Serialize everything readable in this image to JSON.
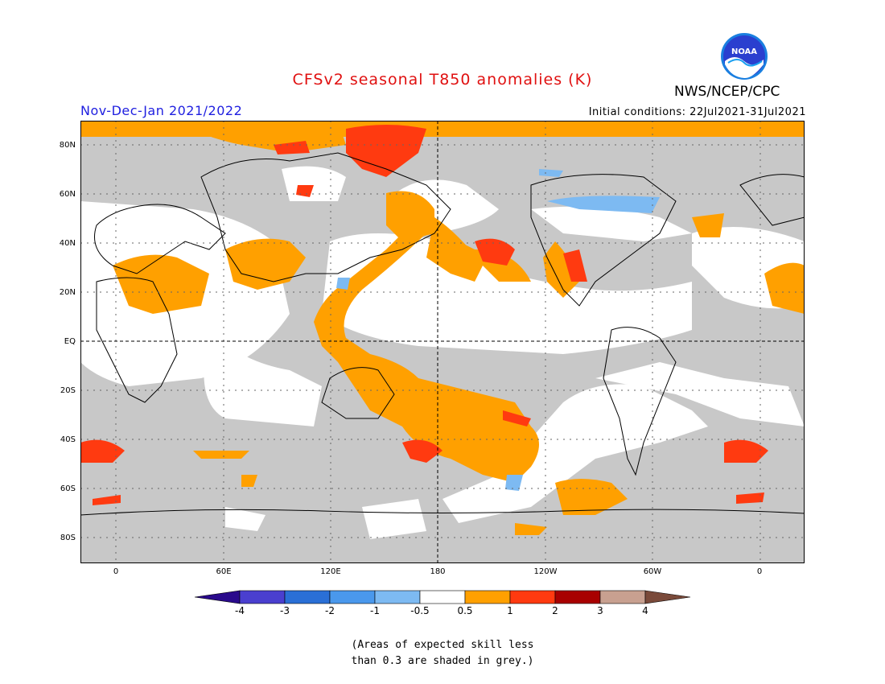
{
  "header": {
    "title": "CFSv2 seasonal T850 anomalies (K)",
    "period": "Nov-Dec-Jan 2021/2022",
    "initial_conditions": "Initial conditions: 22Jul2021-31Jul2021",
    "agency": "NWS/NCEP/CPC",
    "logo_text": "NOAA"
  },
  "axes": {
    "lat_labels": [
      "80N",
      "60N",
      "40N",
      "20N",
      "EQ",
      "20S",
      "40S",
      "60S",
      "80S"
    ],
    "lon_labels": [
      "0",
      "60E",
      "120E",
      "180",
      "120W",
      "60W",
      "0"
    ]
  },
  "colorbar": {
    "labels": [
      "-4",
      "-3",
      "-2",
      "-1",
      "-0.5",
      "0.5",
      "1",
      "2",
      "3",
      "4"
    ],
    "colors": [
      "#2a0a8c",
      "#4a3fcf",
      "#2a6fd6",
      "#4a98ec",
      "#7dbaf2",
      "#ffffff",
      "#ffa000",
      "#ff3a10",
      "#a80000",
      "#c8a090",
      "#7a4a3a"
    ]
  },
  "note": {
    "line1": "(Areas of expected skill less",
    "line2": "than 0.3 are shaded in grey.)"
  },
  "colors": {
    "grey_skill": "#c8c8c8",
    "warm_1": "#ffa000",
    "warm_2": "#ff3a10",
    "cool_1": "#7dbaf2"
  }
}
